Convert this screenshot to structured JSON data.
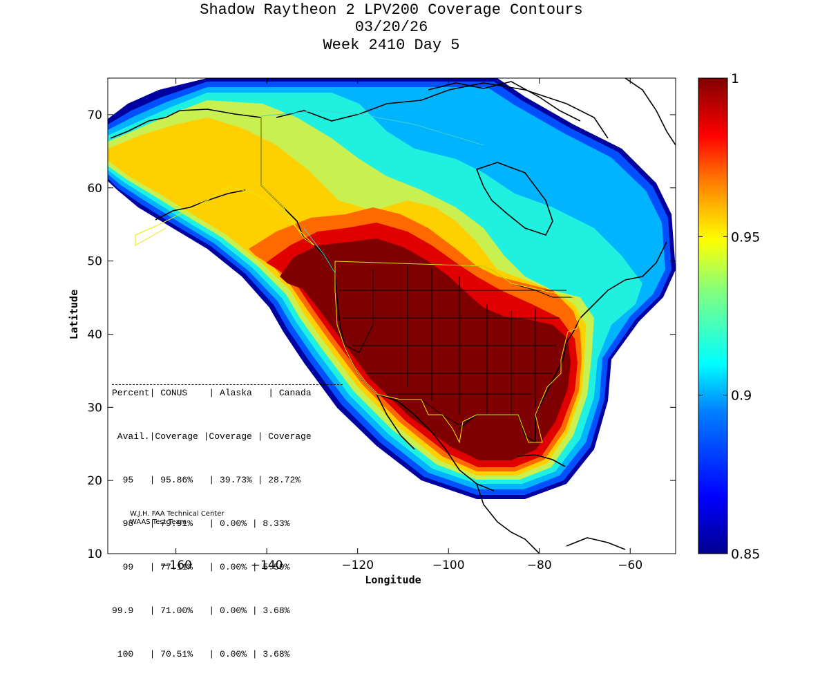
{
  "title": {
    "line1": "Shadow Raytheon 2 LPV200 Coverage Contours",
    "line2": "03/20/26",
    "line3": "Week 2410 Day 5"
  },
  "axes": {
    "xlabel": "Longitude",
    "ylabel": "Latitude",
    "xlim": [
      -175,
      -50
    ],
    "ylim": [
      10,
      75
    ],
    "xticks": [
      -160,
      -140,
      -120,
      -100,
      -80,
      -60
    ],
    "yticks": [
      10,
      20,
      30,
      40,
      50,
      60,
      70
    ]
  },
  "colorbar": {
    "min": 0.85,
    "max": 1,
    "ticks": [
      "1",
      "0.95",
      "0.9",
      "0.85"
    ],
    "colormap": [
      "#00008f",
      "#0000ff",
      "#0080ff",
      "#00ffff",
      "#80ff80",
      "#ffff00",
      "#ff8000",
      "#ff0000",
      "#800000"
    ]
  },
  "coverage_table": {
    "header1": "Percent| CONUS    | Alaska   | Canada",
    "header2": " Avail.|Coverage |Coverage | Coverage",
    "rows": [
      "  95   | 95.86%   | 39.73% | 28.72%",
      "  98   | 79.91%   | 0.00% | 8.33%",
      "  99   | 77.11%   | 0.00% | 5.59%",
      "99.9   | 71.00%   | 0.00% | 3.68%",
      " 100   | 70.51%   | 0.00% | 3.68%"
    ]
  },
  "credit": {
    "line1": "W.J.H. FAA Technical Center",
    "line2": "WAAS Test Team"
  },
  "chart_data": {
    "type": "heatmap",
    "title": "Shadow Raytheon 2 LPV200 Coverage Contours",
    "xlabel": "Longitude",
    "ylabel": "Latitude",
    "xlim": [
      -175,
      -50
    ],
    "ylim": [
      10,
      75
    ],
    "value_range": [
      0.85,
      1
    ],
    "table_columns": [
      "Percent Avail.",
      "CONUS Coverage",
      "Alaska Coverage",
      "Canada Coverage"
    ],
    "table_rows": [
      [
        "95",
        "95.86%",
        "39.73%",
        "28.72%"
      ],
      [
        "98",
        "79.91%",
        "0.00%",
        "8.33%"
      ],
      [
        "99",
        "77.11%",
        "0.00%",
        "5.59%"
      ],
      [
        "99.9",
        "71.00%",
        "0.00%",
        "3.68%"
      ],
      [
        "100",
        "70.51%",
        "0.00%",
        "3.68%"
      ]
    ]
  }
}
